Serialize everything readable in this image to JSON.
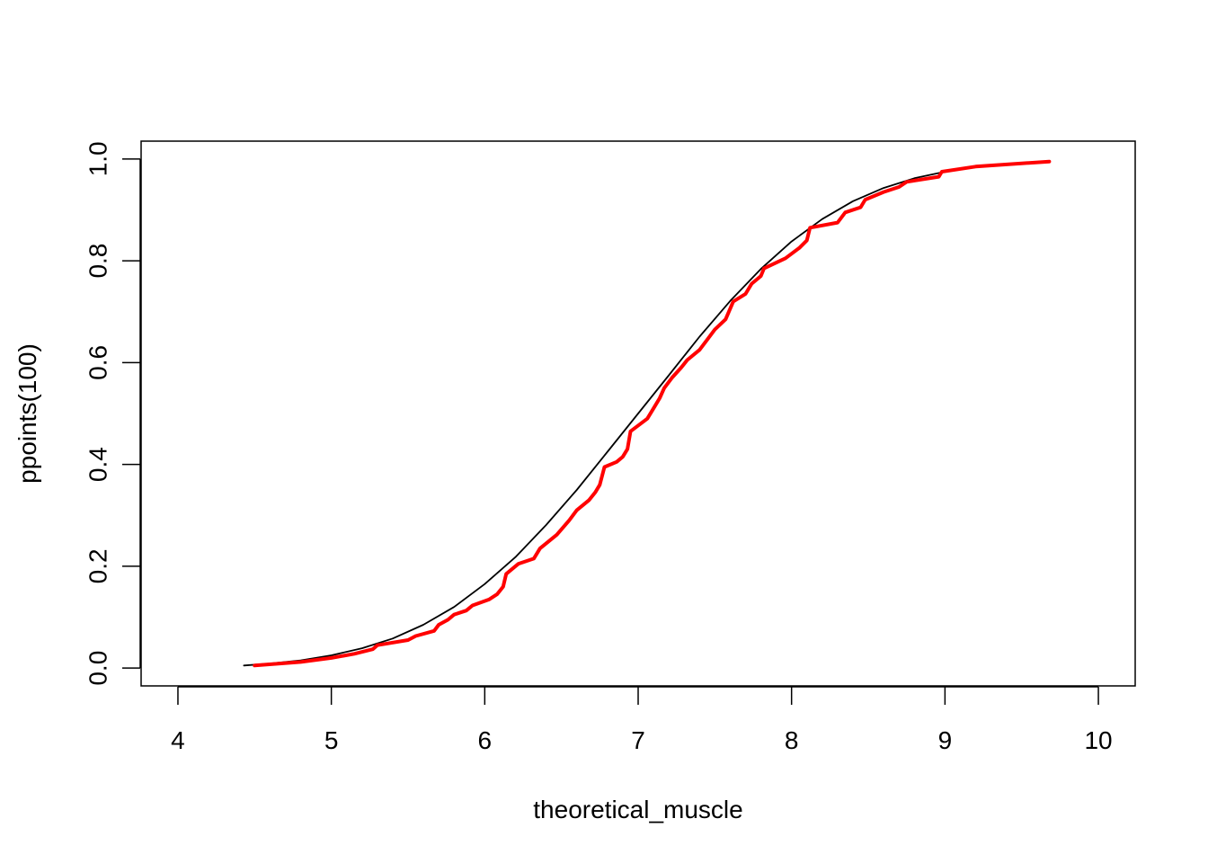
{
  "chart_data": {
    "type": "line",
    "title": "",
    "xlabel": "theoretical_muscle",
    "ylabel": "ppoints(100)",
    "xlim": [
      3.76,
      10.24
    ],
    "ylim": [
      -0.035,
      1.035
    ],
    "x_ticks": [
      4,
      5,
      6,
      7,
      8,
      9,
      10
    ],
    "y_ticks": [
      0.0,
      0.2,
      0.4,
      0.6,
      0.8,
      1.0
    ],
    "x_tick_labels": [
      "4",
      "5",
      "6",
      "7",
      "8",
      "9",
      "10"
    ],
    "y_tick_labels": [
      "0.0",
      "0.2",
      "0.4",
      "0.6",
      "0.8",
      "1.0"
    ],
    "grid": false,
    "legend": "none",
    "series": [
      {
        "color": "#000000",
        "style": "thin",
        "x": [
          4.43,
          4.6,
          4.8,
          5.0,
          5.2,
          5.4,
          5.6,
          5.8,
          6.0,
          6.2,
          6.4,
          6.6,
          6.8,
          7.0,
          7.2,
          7.4,
          7.6,
          7.8,
          8.0,
          8.2,
          8.4,
          8.6,
          8.8,
          9.0,
          9.2,
          9.4,
          9.68
        ],
        "y": [
          0.005,
          0.009,
          0.015,
          0.025,
          0.039,
          0.058,
          0.085,
          0.12,
          0.165,
          0.218,
          0.281,
          0.35,
          0.425,
          0.5,
          0.575,
          0.651,
          0.721,
          0.784,
          0.838,
          0.882,
          0.917,
          0.943,
          0.962,
          0.975,
          0.984,
          0.99,
          0.995
        ]
      },
      {
        "color": "#ff0000",
        "style": "thick",
        "x": [
          4.5,
          4.8,
          5.0,
          5.15,
          5.27,
          5.3,
          5.5,
          5.55,
          5.67,
          5.7,
          5.76,
          5.8,
          5.88,
          5.92,
          6.03,
          6.08,
          6.12,
          6.14,
          6.22,
          6.32,
          6.36,
          6.47,
          6.55,
          6.6,
          6.68,
          6.72,
          6.75,
          6.78,
          6.86,
          6.9,
          6.93,
          6.95,
          7.06,
          7.1,
          7.14,
          7.17,
          7.22,
          7.28,
          7.32,
          7.4,
          7.45,
          7.5,
          7.57,
          7.62,
          7.7,
          7.74,
          7.8,
          7.82,
          7.96,
          8.05,
          8.1,
          8.12,
          8.3,
          8.35,
          8.45,
          8.48,
          8.6,
          8.7,
          8.75,
          8.96,
          8.98,
          9.2,
          9.68
        ],
        "y": [
          0.005,
          0.012,
          0.02,
          0.028,
          0.037,
          0.045,
          0.055,
          0.063,
          0.073,
          0.085,
          0.095,
          0.105,
          0.113,
          0.123,
          0.135,
          0.145,
          0.16,
          0.185,
          0.205,
          0.215,
          0.235,
          0.262,
          0.29,
          0.31,
          0.33,
          0.345,
          0.36,
          0.395,
          0.405,
          0.415,
          0.43,
          0.465,
          0.49,
          0.51,
          0.53,
          0.55,
          0.57,
          0.59,
          0.605,
          0.625,
          0.645,
          0.665,
          0.685,
          0.72,
          0.735,
          0.755,
          0.77,
          0.785,
          0.805,
          0.825,
          0.84,
          0.865,
          0.875,
          0.895,
          0.905,
          0.92,
          0.935,
          0.945,
          0.955,
          0.965,
          0.975,
          0.985,
          0.995
        ]
      }
    ]
  }
}
